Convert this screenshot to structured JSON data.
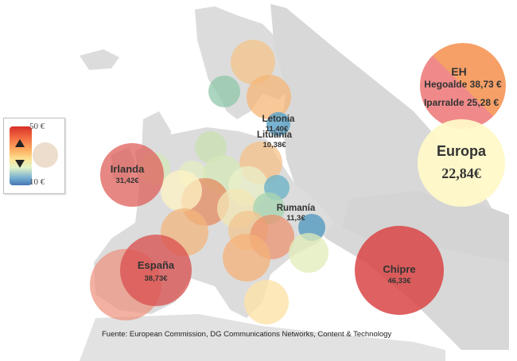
{
  "legend": {
    "max_label": "50 €",
    "min_label": "10 €",
    "range": [
      10,
      50
    ]
  },
  "source": "Fuente: European Commission,  DG Communications Networks, Content & Technology",
  "colors": {
    "high": "#d73027",
    "mid": "#fee090",
    "low": "#4575b4"
  },
  "labeled_values": [
    {
      "name": "Letonia",
      "value": "11,40€"
    },
    {
      "name": "Lituania",
      "value": "10,38€"
    },
    {
      "name": "Irlanda",
      "value": "31,42€"
    },
    {
      "name": "Rumanía",
      "value": "11,3€"
    },
    {
      "name": "España",
      "value": "38,73€"
    },
    {
      "name": "Chipre",
      "value": "46,33€"
    }
  ],
  "eh": {
    "title": "EH",
    "hegoalde": "Hegoalde 38,73 €",
    "iparralde": "Iparralde 25,28 €"
  },
  "europa": {
    "title": "Europa",
    "value": "22,84€"
  }
}
